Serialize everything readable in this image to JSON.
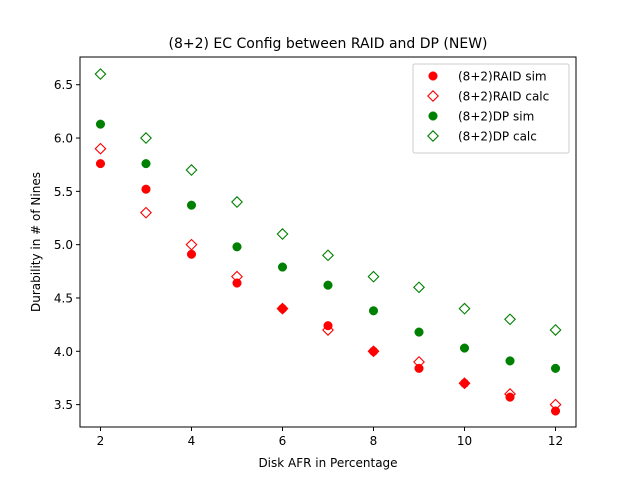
{
  "chart_data": {
    "type": "scatter",
    "title": "(8+2) EC Config between RAID and DP (NEW)",
    "xlabel": "Disk AFR in Percentage",
    "ylabel": "Durability in # of Nines",
    "xlim": [
      1.55,
      12.45
    ],
    "ylim": [
      3.29,
      6.76
    ],
    "x_ticks": [
      2,
      4,
      6,
      8,
      10,
      12
    ],
    "y_ticks": [
      3.5,
      4.0,
      4.5,
      5.0,
      5.5,
      6.0,
      6.5
    ],
    "x_tick_labels": [
      "2",
      "4",
      "6",
      "8",
      "10",
      "12"
    ],
    "y_tick_labels": [
      "3.5",
      "4.0",
      "4.5",
      "5.0",
      "5.5",
      "6.0",
      "6.5"
    ],
    "grid": false,
    "legend_position": "top-right",
    "x": [
      2,
      3,
      4,
      5,
      6,
      7,
      8,
      9,
      10,
      11,
      12
    ],
    "series": [
      {
        "name": "(8+2)RAID sim",
        "marker": "circle-filled",
        "color": "#ff0000",
        "values": [
          5.76,
          5.52,
          4.91,
          4.64,
          4.4,
          4.24,
          4.0,
          3.84,
          3.7,
          3.57,
          3.44
        ]
      },
      {
        "name": "(8+2)RAID calc",
        "marker": "diamond-open",
        "color": "#ff0000",
        "values": [
          5.9,
          5.3,
          5.0,
          4.7,
          4.4,
          4.2,
          4.0,
          3.9,
          3.7,
          3.6,
          3.5
        ]
      },
      {
        "name": "(8+2)DP sim",
        "marker": "circle-filled",
        "color": "#008000",
        "values": [
          6.13,
          5.76,
          5.37,
          4.98,
          4.79,
          4.62,
          4.38,
          4.18,
          4.03,
          3.91,
          3.84
        ]
      },
      {
        "name": "(8+2)DP calc",
        "marker": "diamond-open",
        "color": "#008000",
        "values": [
          6.6,
          6.0,
          5.7,
          5.4,
          5.1,
          4.9,
          4.7,
          4.6,
          4.4,
          4.3,
          4.2
        ]
      }
    ]
  }
}
